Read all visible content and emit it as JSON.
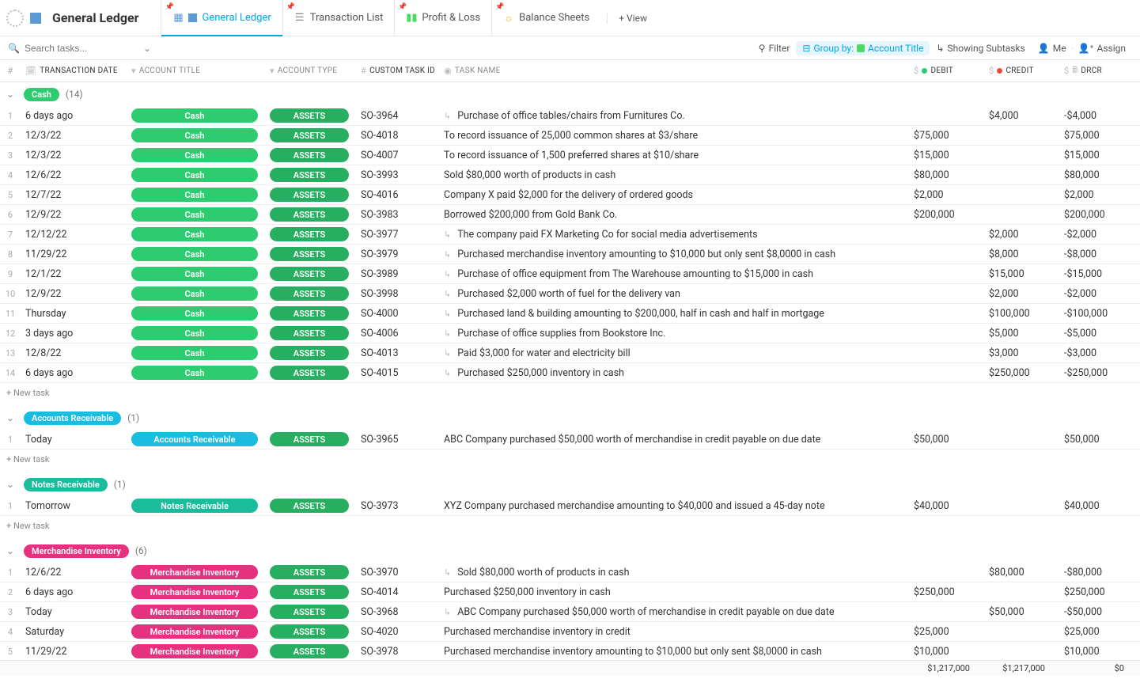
{
  "page_title": "General Ledger",
  "tabs": [
    {
      "label": "General Ledger",
      "active": true,
      "icon": "grid",
      "color": "#5b9bd5"
    },
    {
      "label": "Transaction List",
      "active": false,
      "icon": "list",
      "color": "#888"
    },
    {
      "label": "Profit & Loss",
      "active": false,
      "icon": "bars",
      "color": "#4cd964"
    },
    {
      "label": "Balance Sheets",
      "active": false,
      "icon": "sun",
      "color": "#f5a623"
    }
  ],
  "add_view_label": "+ View",
  "search_placeholder": "Search tasks...",
  "toolbar": {
    "filter": "Filter",
    "group_by_prefix": "Group by:",
    "group_by_value": "Account Title",
    "subtasks": "Showing Subtasks",
    "me": "Me",
    "assign": "Assign"
  },
  "columns": {
    "num": "#",
    "date": "TRANSACTION DATE",
    "acct": "ACCOUNT TITLE",
    "type": "ACCOUNT TYPE",
    "id": "CUSTOM TASK ID",
    "task": "TASK NAME",
    "debit": "DEBIT",
    "credit": "CREDIT",
    "drcr": "DRCR"
  },
  "colors": {
    "assets": "#27ae60",
    "cash": "#2ecc71",
    "ar": "#1abde0",
    "nr": "#1abc9c",
    "mi": "#e6317e"
  },
  "new_task_label": "+ New task",
  "groups": [
    {
      "name": "Cash",
      "count": "(14)",
      "pill_color": "#2ecc71",
      "rows": [
        {
          "n": "1",
          "date": "6 days ago",
          "acct": "Cash",
          "type": "ASSETS",
          "id": "SO-3964",
          "task": "Purchase of office tables/chairs from Furnitures Co.",
          "sub": true,
          "debit": "",
          "credit": "$4,000",
          "drcr": "-$4,000"
        },
        {
          "n": "2",
          "date": "12/3/22",
          "acct": "Cash",
          "type": "ASSETS",
          "id": "SO-4018",
          "task": "To record issuance of 25,000 common shares at $3/share",
          "sub": false,
          "debit": "$75,000",
          "credit": "",
          "drcr": "$75,000"
        },
        {
          "n": "3",
          "date": "12/3/22",
          "acct": "Cash",
          "type": "ASSETS",
          "id": "SO-4007",
          "task": "To record issuance of 1,500 preferred shares at $10/share",
          "sub": false,
          "debit": "$15,000",
          "credit": "",
          "drcr": "$15,000"
        },
        {
          "n": "4",
          "date": "12/6/22",
          "acct": "Cash",
          "type": "ASSETS",
          "id": "SO-3993",
          "task": "Sold $80,000 worth of products in cash",
          "sub": false,
          "debit": "$80,000",
          "credit": "",
          "drcr": "$80,000"
        },
        {
          "n": "5",
          "date": "12/7/22",
          "acct": "Cash",
          "type": "ASSETS",
          "id": "SO-4016",
          "task": "Company X paid $2,000 for the delivery of ordered goods",
          "sub": false,
          "debit": "$2,000",
          "credit": "",
          "drcr": "$2,000"
        },
        {
          "n": "6",
          "date": "12/9/22",
          "acct": "Cash",
          "type": "ASSETS",
          "id": "SO-3983",
          "task": "Borrowed $200,000 from Gold Bank Co.",
          "sub": false,
          "debit": "$200,000",
          "credit": "",
          "drcr": "$200,000"
        },
        {
          "n": "7",
          "date": "12/12/22",
          "acct": "Cash",
          "type": "ASSETS",
          "id": "SO-3977",
          "task": "The company paid FX Marketing Co for social media advertisements",
          "sub": true,
          "debit": "",
          "credit": "$2,000",
          "drcr": "-$2,000"
        },
        {
          "n": "8",
          "date": "11/29/22",
          "acct": "Cash",
          "type": "ASSETS",
          "id": "SO-3979",
          "task": "Purchased merchandise inventory amounting to $10,000 but only sent $8,0000 in cash",
          "sub": true,
          "debit": "",
          "credit": "$8,000",
          "drcr": "-$8,000"
        },
        {
          "n": "9",
          "date": "12/1/22",
          "acct": "Cash",
          "type": "ASSETS",
          "id": "SO-3989",
          "task": "Purchase of office equipment from The Warehouse amounting to $15,000 in cash",
          "sub": true,
          "debit": "",
          "credit": "$15,000",
          "drcr": "-$15,000"
        },
        {
          "n": "10",
          "date": "12/9/22",
          "acct": "Cash",
          "type": "ASSETS",
          "id": "SO-3998",
          "task": "Purchased $2,000 worth of fuel for the delivery van",
          "sub": true,
          "debit": "",
          "credit": "$2,000",
          "drcr": "-$2,000"
        },
        {
          "n": "11",
          "date": "Thursday",
          "acct": "Cash",
          "type": "ASSETS",
          "id": "SO-4000",
          "task": "Purchased land & building amounting to $200,000, half in cash and half in mortgage",
          "sub": true,
          "debit": "",
          "credit": "$100,000",
          "drcr": "-$100,000"
        },
        {
          "n": "12",
          "date": "3 days ago",
          "acct": "Cash",
          "type": "ASSETS",
          "id": "SO-4006",
          "task": "Purchase of office supplies from Bookstore Inc.",
          "sub": true,
          "debit": "",
          "credit": "$5,000",
          "drcr": "-$5,000"
        },
        {
          "n": "13",
          "date": "12/8/22",
          "acct": "Cash",
          "type": "ASSETS",
          "id": "SO-4013",
          "task": "Paid $3,000 for water and electricity bill",
          "sub": true,
          "debit": "",
          "credit": "$3,000",
          "drcr": "-$3,000"
        },
        {
          "n": "14",
          "date": "6 days ago",
          "acct": "Cash",
          "type": "ASSETS",
          "id": "SO-4015",
          "task": "Purchased $250,000 inventory in cash",
          "sub": true,
          "debit": "",
          "credit": "$250,000",
          "drcr": "-$250,000"
        }
      ],
      "acct_color": "#2ecc71"
    },
    {
      "name": "Accounts Receivable",
      "count": "(1)",
      "pill_color": "#1abde0",
      "rows": [
        {
          "n": "1",
          "date": "Today",
          "acct": "Accounts Receivable",
          "type": "ASSETS",
          "id": "SO-3965",
          "task": "ABC Company purchased $50,000 worth of merchandise in credit payable on due date",
          "sub": false,
          "debit": "$50,000",
          "credit": "",
          "drcr": "$50,000"
        }
      ],
      "acct_color": "#1abde0"
    },
    {
      "name": "Notes Receivable",
      "count": "(1)",
      "pill_color": "#1abc9c",
      "rows": [
        {
          "n": "1",
          "date": "Tomorrow",
          "acct": "Notes Receivable",
          "type": "ASSETS",
          "id": "SO-3973",
          "task": "XYZ Company purchased merchandise amounting to $40,000 and issued a 45-day note",
          "sub": false,
          "debit": "$40,000",
          "credit": "",
          "drcr": "$40,000"
        }
      ],
      "acct_color": "#1abc9c"
    },
    {
      "name": "Merchandise Inventory",
      "count": "(6)",
      "pill_color": "#e6317e",
      "rows": [
        {
          "n": "1",
          "date": "12/6/22",
          "acct": "Merchandise Inventory",
          "type": "ASSETS",
          "id": "SO-3970",
          "task": "Sold $80,000 worth of products in cash",
          "sub": true,
          "debit": "",
          "credit": "$80,000",
          "drcr": "-$80,000"
        },
        {
          "n": "2",
          "date": "6 days ago",
          "acct": "Merchandise Inventory",
          "type": "ASSETS",
          "id": "SO-4014",
          "task": "Purchased $250,000 inventory in cash",
          "sub": false,
          "debit": "$250,000",
          "credit": "",
          "drcr": "$250,000"
        },
        {
          "n": "3",
          "date": "Today",
          "acct": "Merchandise Inventory",
          "type": "ASSETS",
          "id": "SO-3968",
          "task": "ABC Company purchased $50,000 worth of merchandise in credit payable on due date",
          "sub": true,
          "debit": "",
          "credit": "$50,000",
          "drcr": "-$50,000"
        },
        {
          "n": "4",
          "date": "Saturday",
          "acct": "Merchandise Inventory",
          "type": "ASSETS",
          "id": "SO-4020",
          "task": "Purchased merchandise inventory in credit",
          "sub": false,
          "debit": "$25,000",
          "credit": "",
          "drcr": "$25,000"
        },
        {
          "n": "5",
          "date": "11/29/22",
          "acct": "Merchandise Inventory",
          "type": "ASSETS",
          "id": "SO-3978",
          "task": "Purchased merchandise inventory amounting to $10,000 but only sent $8,0000 in cash",
          "sub": false,
          "debit": "$10,000",
          "credit": "",
          "drcr": "$10,000"
        }
      ],
      "acct_color": "#e6317e",
      "no_newtask": true
    }
  ],
  "footer": {
    "debit": "$1,217,000",
    "credit": "$1,217,000",
    "drcr": "$0"
  }
}
